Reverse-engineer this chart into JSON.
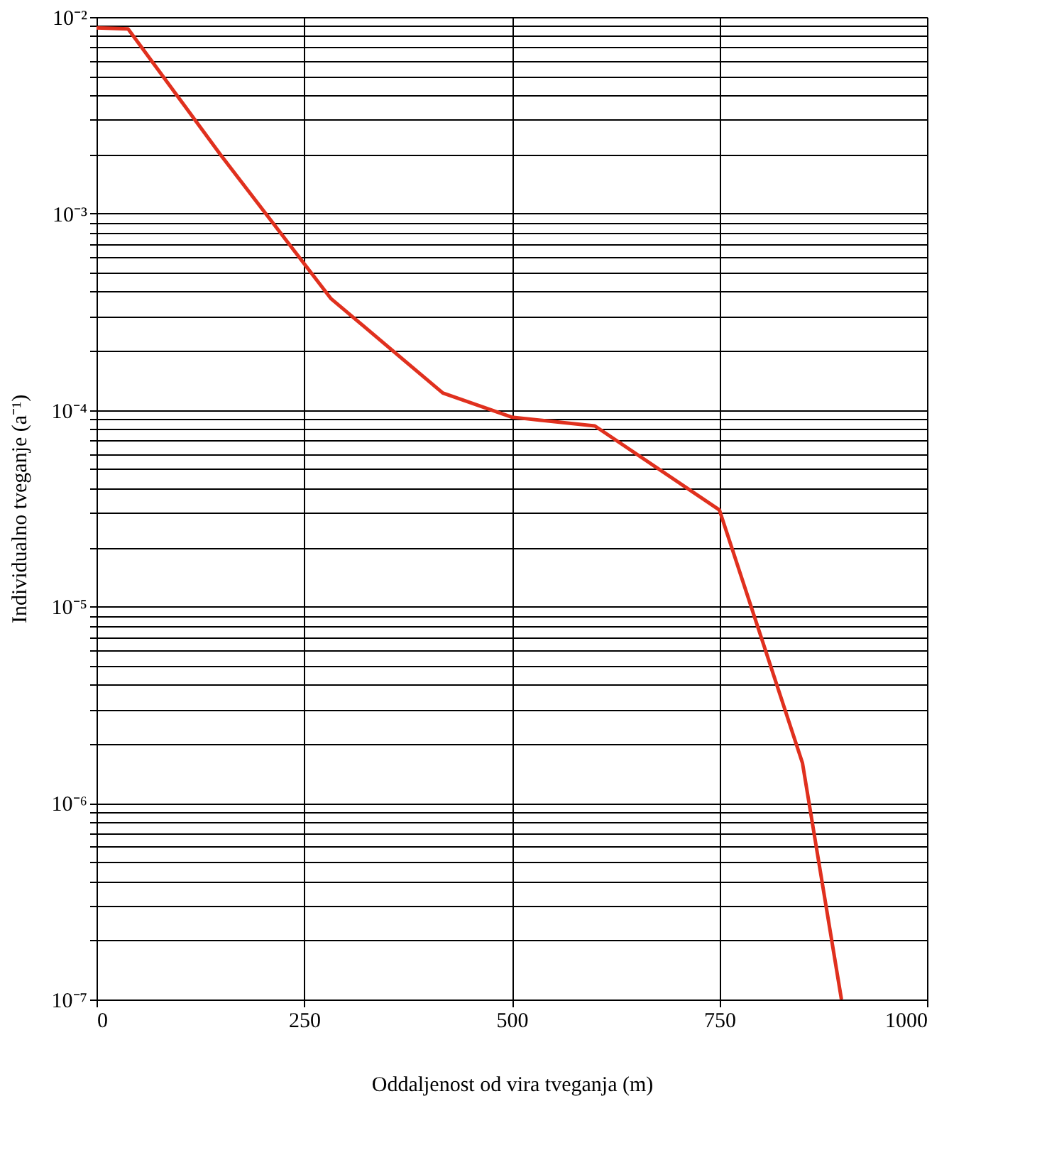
{
  "chart_data": {
    "type": "line",
    "xlabel": "Oddaljenost od vira tveganja (m)",
    "ylabel": "Individualno tveganje (a⁻¹)",
    "x": [
      0,
      38,
      149,
      282,
      417,
      500,
      600,
      750,
      850,
      897
    ],
    "series": [
      {
        "color": "#e0301e",
        "values": [
          0.0088,
          0.0087,
          0.002,
          0.00037,
          0.000122,
          9.2e-05,
          8.3e-05,
          3.1e-05,
          1.6e-06,
          1e-07
        ]
      }
    ],
    "xlim": [
      0,
      1000
    ],
    "xticks": [
      0,
      250,
      500,
      750,
      1000
    ],
    "ylim": [
      1e-07,
      0.01
    ],
    "log": true,
    "yticks": [
      {
        "value": 0.01,
        "label": "10⁻²"
      },
      {
        "value": 0.009,
        "label": null
      },
      {
        "value": 0.008,
        "label": null
      },
      {
        "value": 0.007,
        "label": null
      },
      {
        "value": 0.006,
        "label": null
      },
      {
        "value": 0.005,
        "label": null
      },
      {
        "value": 0.004,
        "label": null
      },
      {
        "value": 0.003,
        "label": null
      },
      {
        "value": 0.002,
        "label": null
      },
      {
        "value": 0.001,
        "label": "10⁻³"
      },
      {
        "value": 0.0009,
        "label": null
      },
      {
        "value": 0.0008,
        "label": null
      },
      {
        "value": 0.0007,
        "label": null
      },
      {
        "value": 0.0006,
        "label": null
      },
      {
        "value": 0.0005,
        "label": null
      },
      {
        "value": 0.0004,
        "label": null
      },
      {
        "value": 0.0003,
        "label": null
      },
      {
        "value": 0.0002,
        "label": null
      },
      {
        "value": 0.0001,
        "label": "10⁻⁴"
      },
      {
        "value": 9e-05,
        "label": null
      },
      {
        "value": 8e-05,
        "label": null
      },
      {
        "value": 7e-05,
        "label": null
      },
      {
        "value": 6e-05,
        "label": null
      },
      {
        "value": 5e-05,
        "label": null
      },
      {
        "value": 4e-05,
        "label": null
      },
      {
        "value": 3e-05,
        "label": null
      },
      {
        "value": 2e-05,
        "label": null
      },
      {
        "value": 1e-05,
        "label": "10⁻⁵"
      },
      {
        "value": 9e-06,
        "label": null
      },
      {
        "value": 8e-06,
        "label": null
      },
      {
        "value": 7e-06,
        "label": null
      },
      {
        "value": 6e-06,
        "label": null
      },
      {
        "value": 5e-06,
        "label": null
      },
      {
        "value": 4e-06,
        "label": null
      },
      {
        "value": 3e-06,
        "label": null
      },
      {
        "value": 2e-06,
        "label": null
      },
      {
        "value": 1e-06,
        "label": "10⁻⁶"
      },
      {
        "value": 9e-07,
        "label": null
      },
      {
        "value": 8e-07,
        "label": null
      },
      {
        "value": 7e-07,
        "label": null
      },
      {
        "value": 6e-07,
        "label": null
      },
      {
        "value": 5e-07,
        "label": null
      },
      {
        "value": 4e-07,
        "label": null
      },
      {
        "value": 3e-07,
        "label": null
      },
      {
        "value": 2e-07,
        "label": null
      },
      {
        "value": 1e-07,
        "label": "10⁻⁷"
      }
    ],
    "grid": true,
    "marker": "none",
    "line_style": "solid"
  }
}
